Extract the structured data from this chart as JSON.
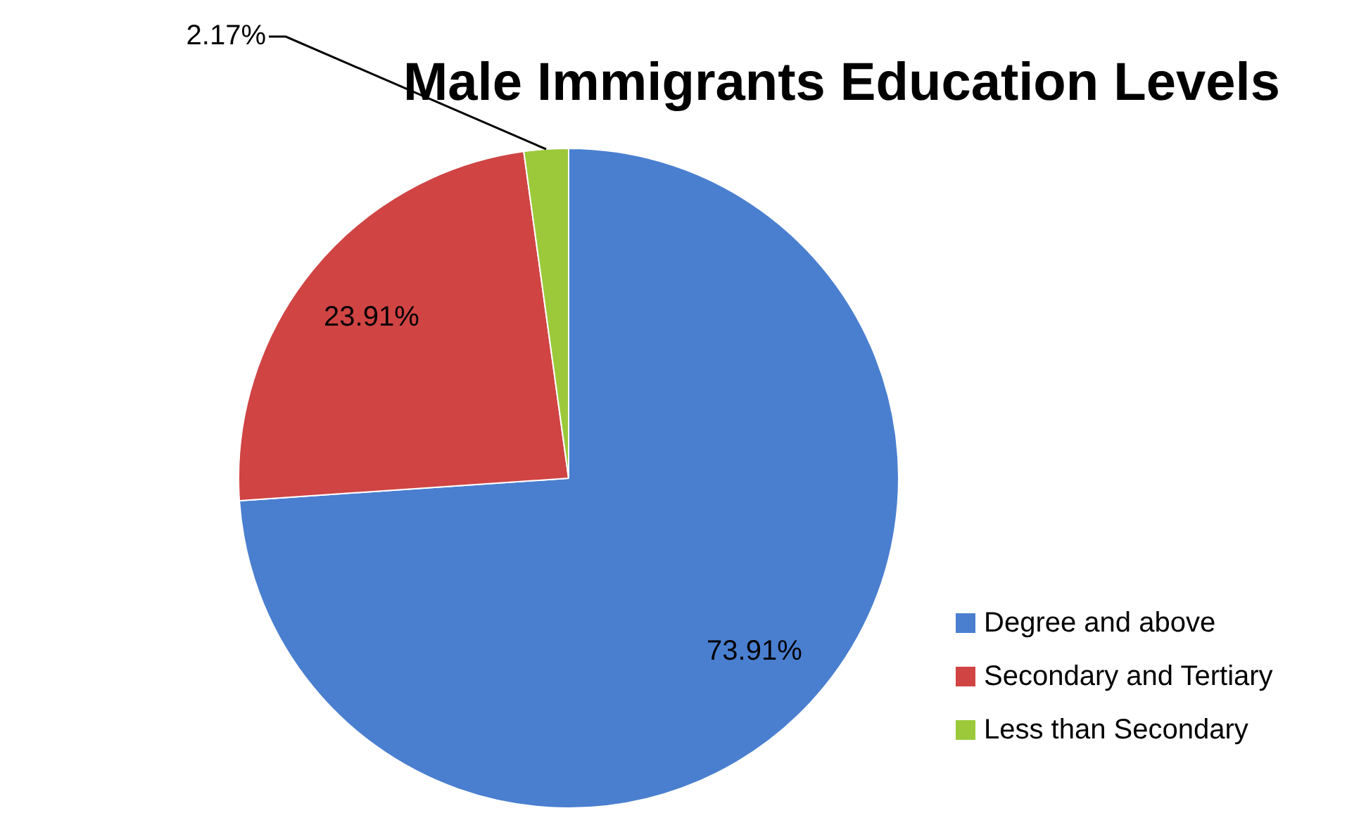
{
  "chart_data": {
    "type": "pie",
    "title": "Male Immigrants Education Levels",
    "categories": [
      "Degree and above",
      "Secondary and Tertiary",
      "Less than Secondary"
    ],
    "values": [
      73.91,
      23.91,
      2.17
    ],
    "colors": [
      "#4a7fd0",
      "#d04444",
      "#9bc93a"
    ],
    "value_labels": [
      "73.91%",
      "23.91%",
      "2.17%"
    ],
    "legend": "bottom right"
  }
}
